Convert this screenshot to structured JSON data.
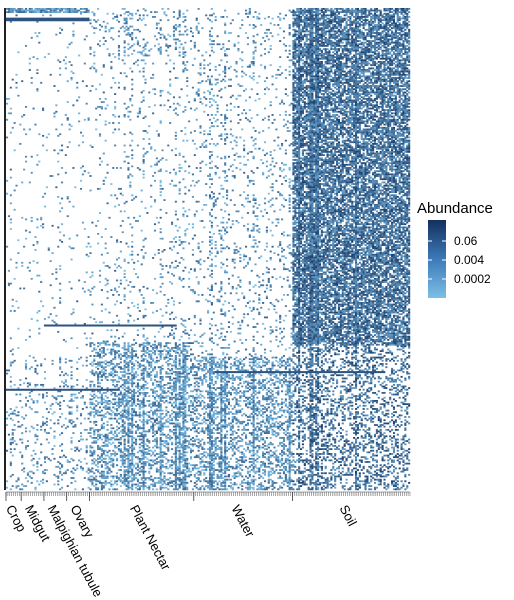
{
  "chart_data": {
    "type": "heatmap",
    "title": "",
    "xlabel": "",
    "ylabel": "",
    "x_groups": [
      {
        "name": "Crop",
        "samples": 8
      },
      {
        "name": "Midgut",
        "samples": 12
      },
      {
        "name": "Malpighian tubule",
        "samples": 12
      },
      {
        "name": "Ovary",
        "samples": 12
      },
      {
        "name": "Plant Nectar",
        "samples": 55
      },
      {
        "name": "Water",
        "samples": 52
      },
      {
        "name": "Soil",
        "samples": 62
      }
    ],
    "rows": 300,
    "legend": {
      "title": "Abundance",
      "placement": "right",
      "scale": "log",
      "ticks": [
        "0.06",
        "0.004",
        "0.0002"
      ],
      "color_low": "#7cbfe6",
      "color_high": "#13305e"
    },
    "colors": {
      "absent": "#ffffff",
      "grid_frame": "#222222"
    }
  }
}
